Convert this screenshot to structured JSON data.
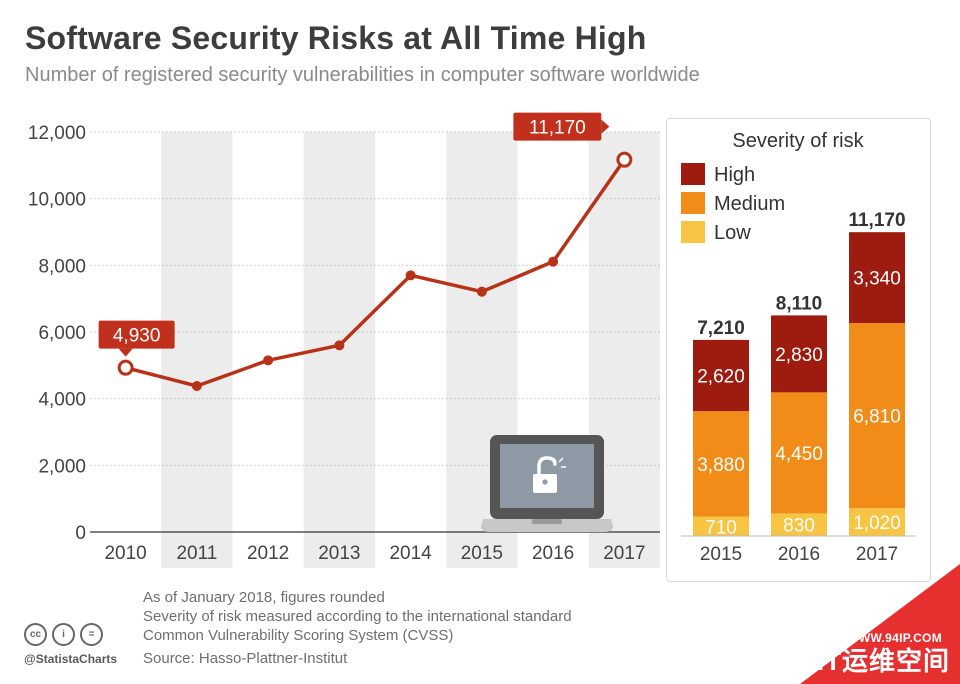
{
  "header": {
    "title": "Software Security Risks at All Time High",
    "subtitle": "Number of registered security vulnerabilities in computer software worldwide"
  },
  "colors": {
    "line": "#b83218",
    "callout": "#c0301c",
    "high": "#9e1b0f",
    "medium": "#f08c17",
    "low": "#f7c443",
    "band": "#ececec",
    "laptop": "#555555",
    "laptop_screen": "#8d9aa6"
  },
  "icons": {
    "laptop": "unlocked-laptop-icon",
    "license": [
      "cc-icon",
      "attribution-icon",
      "noderivs-icon"
    ]
  },
  "chart_data": [
    {
      "type": "line",
      "categories": [
        "2010",
        "2011",
        "2012",
        "2013",
        "2014",
        "2015",
        "2016",
        "2017"
      ],
      "values": [
        4930,
        4380,
        5150,
        5600,
        7700,
        7210,
        8110,
        11170
      ],
      "ylim": [
        0,
        12000
      ],
      "yticks": [
        0,
        2000,
        4000,
        6000,
        8000,
        10000,
        12000
      ],
      "ytick_labels": [
        "0",
        "2,000",
        "4,000",
        "6,000",
        "8,000",
        "10,000",
        "12,000"
      ],
      "callouts": [
        {
          "category": "2010",
          "label": "4,930"
        },
        {
          "category": "2017",
          "label": "11,170"
        }
      ]
    },
    {
      "type": "bar",
      "stacked": true,
      "title": "Severity of risk",
      "categories": [
        "2015",
        "2016",
        "2017"
      ],
      "series": [
        {
          "name": "High",
          "values": [
            2620,
            2830,
            3340
          ],
          "labels": [
            "2,620",
            "2,830",
            "3,340"
          ]
        },
        {
          "name": "Medium",
          "values": [
            3880,
            4450,
            6810
          ],
          "labels": [
            "3,880",
            "4,450",
            "6,810"
          ]
        },
        {
          "name": "Low",
          "values": [
            710,
            830,
            1020
          ],
          "labels": [
            "710",
            "830",
            "1,020"
          ]
        }
      ],
      "totals": [
        "7,210",
        "8,110",
        "11,170"
      ],
      "legend_position": "top-left"
    }
  ],
  "footer": {
    "notes": [
      "As of January 2018, figures rounded",
      "Severity of risk measured according to the international standard",
      "Common Vulnerability Scoring System (CVSS)"
    ],
    "source": "Source: Hasso-Plattner-Institut",
    "handle": "@StatistaCharts",
    "cc_glyphs": [
      "cc",
      "i",
      "="
    ]
  },
  "watermark": {
    "url": "WWW.94IP.COM",
    "name": "IT运维空间"
  }
}
